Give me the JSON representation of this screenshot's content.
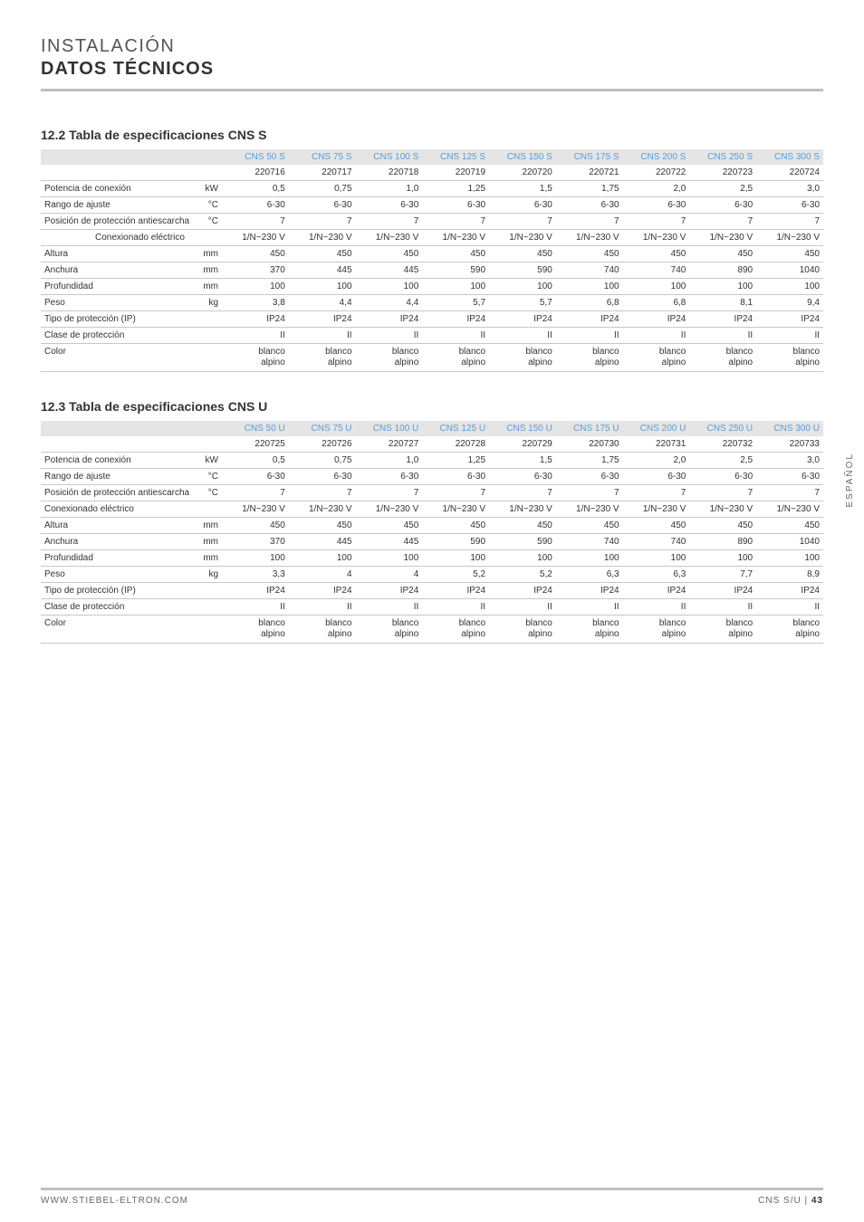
{
  "header": {
    "line1": "INSTALACIÓN",
    "line2": "DATOS TÉCNICOS"
  },
  "side_tab": "ESPAÑOL",
  "footer": {
    "left": "WWW.STIEBEL-ELTRON.COM",
    "right_prefix": "CNS S/U | ",
    "right_page": "43"
  },
  "section_s": {
    "title": "12.2   Tabla de especificaciones CNS S",
    "models": [
      "CNS 50 S",
      "CNS 75 S",
      "CNS 100 S",
      "CNS 125 S",
      "CNS 150 S",
      "CNS 175 S",
      "CNS 200 S",
      "CNS 250 S",
      "CNS 300 S"
    ],
    "codes": [
      "220716",
      "220717",
      "220718",
      "220719",
      "220720",
      "220721",
      "220722",
      "220723",
      "220724"
    ],
    "rows": [
      {
        "label": "Potencia de conexión",
        "unit": "kW",
        "vals": [
          "0,5",
          "0,75",
          "1,0",
          "1,25",
          "1,5",
          "1,75",
          "2,0",
          "2,5",
          "3,0"
        ]
      },
      {
        "label": "Rango de ajuste",
        "unit": "°C",
        "vals": [
          "6-30",
          "6-30",
          "6-30",
          "6-30",
          "6-30",
          "6-30",
          "6-30",
          "6-30",
          "6-30"
        ]
      },
      {
        "label": "Posición de protección antiescarcha",
        "unit": "°C",
        "vals": [
          "7",
          "7",
          "7",
          "7",
          "7",
          "7",
          "7",
          "7",
          "7"
        ]
      },
      {
        "label": "Conexionado eléctrico",
        "unit": "",
        "indent": true,
        "vals": [
          "1/N~230 V",
          "1/N~230 V",
          "1/N~230 V",
          "1/N~230 V",
          "1/N~230 V",
          "1/N~230 V",
          "1/N~230 V",
          "1/N~230 V",
          "1/N~230 V"
        ]
      },
      {
        "label": "Altura",
        "unit": "mm",
        "vals": [
          "450",
          "450",
          "450",
          "450",
          "450",
          "450",
          "450",
          "450",
          "450"
        ]
      },
      {
        "label": "Anchura",
        "unit": "mm",
        "vals": [
          "370",
          "445",
          "445",
          "590",
          "590",
          "740",
          "740",
          "890",
          "1040"
        ]
      },
      {
        "label": "Profundidad",
        "unit": "mm",
        "vals": [
          "100",
          "100",
          "100",
          "100",
          "100",
          "100",
          "100",
          "100",
          "100"
        ]
      },
      {
        "label": "Peso",
        "unit": "kg",
        "vals": [
          "3,8",
          "4,4",
          "4,4",
          "5,7",
          "5,7",
          "6,8",
          "6,8",
          "8,1",
          "9,4"
        ]
      },
      {
        "label": "Tipo de protección (IP)",
        "unit": "",
        "vals": [
          "IP24",
          "IP24",
          "IP24",
          "IP24",
          "IP24",
          "IP24",
          "IP24",
          "IP24",
          "IP24"
        ]
      },
      {
        "label": "Clase de protección",
        "unit": "",
        "vals": [
          "II",
          "II",
          "II",
          "II",
          "II",
          "II",
          "II",
          "II",
          "II"
        ]
      },
      {
        "label": "Color",
        "unit": "",
        "vals": [
          "blanco alpino",
          "blanco alpino",
          "blanco alpino",
          "blanco alpino",
          "blanco alpino",
          "blanco alpino",
          "blanco alpino",
          "blanco alpino",
          "blanco alpino"
        ]
      }
    ]
  },
  "section_u": {
    "title": "12.3   Tabla de especificaciones CNS U",
    "models": [
      "CNS 50 U",
      "CNS 75 U",
      "CNS 100 U",
      "CNS 125 U",
      "CNS 150 U",
      "CNS 175 U",
      "CNS 200 U",
      "CNS 250 U",
      "CNS 300 U"
    ],
    "codes": [
      "220725",
      "220726",
      "220727",
      "220728",
      "220729",
      "220730",
      "220731",
      "220732",
      "220733"
    ],
    "rows": [
      {
        "label": "Potencia de conexión",
        "unit": "kW",
        "vals": [
          "0,5",
          "0,75",
          "1,0",
          "1,25",
          "1,5",
          "1,75",
          "2,0",
          "2,5",
          "3,0"
        ]
      },
      {
        "label": "Rango de ajuste",
        "unit": "°C",
        "vals": [
          "6-30",
          "6-30",
          "6-30",
          "6-30",
          "6-30",
          "6-30",
          "6-30",
          "6-30",
          "6-30"
        ]
      },
      {
        "label": "Posición de protección antiescarcha",
        "unit": "°C",
        "vals": [
          "7",
          "7",
          "7",
          "7",
          "7",
          "7",
          "7",
          "7",
          "7"
        ]
      },
      {
        "label": "Conexionado eléctrico",
        "unit": "",
        "vals": [
          "1/N~230 V",
          "1/N~230 V",
          "1/N~230 V",
          "1/N~230 V",
          "1/N~230 V",
          "1/N~230 V",
          "1/N~230 V",
          "1/N~230 V",
          "1/N~230 V"
        ]
      },
      {
        "label": "Altura",
        "unit": "mm",
        "vals": [
          "450",
          "450",
          "450",
          "450",
          "450",
          "450",
          "450",
          "450",
          "450"
        ]
      },
      {
        "label": "Anchura",
        "unit": "mm",
        "vals": [
          "370",
          "445",
          "445",
          "590",
          "590",
          "740",
          "740",
          "890",
          "1040"
        ]
      },
      {
        "label": "Profundidad",
        "unit": "mm",
        "vals": [
          "100",
          "100",
          "100",
          "100",
          "100",
          "100",
          "100",
          "100",
          "100"
        ]
      },
      {
        "label": "Peso",
        "unit": "kg",
        "vals": [
          "3,3",
          "4",
          "4",
          "5,2",
          "5,2",
          "6,3",
          "6,3",
          "7,7",
          "8,9"
        ]
      },
      {
        "label": "Tipo de protección (IP)",
        "unit": "",
        "vals": [
          "IP24",
          "IP24",
          "IP24",
          "IP24",
          "IP24",
          "IP24",
          "IP24",
          "IP24",
          "IP24"
        ]
      },
      {
        "label": "Clase de protección",
        "unit": "",
        "vals": [
          "II",
          "II",
          "II",
          "II",
          "II",
          "II",
          "II",
          "II",
          "II"
        ]
      },
      {
        "label": "Color",
        "unit": "",
        "vals": [
          "blanco alpino",
          "blanco alpino",
          "blanco alpino",
          "blanco alpino",
          "blanco alpino",
          "blanco alpino",
          "blanco alpino",
          "blanco alpino",
          "blanco alpino"
        ]
      }
    ]
  },
  "styling": {
    "model_header_color": "#5b9bd5",
    "header_bg": "#e5e5e5",
    "border_color": "#c8c8c8",
    "hr_color": "#bfbfbf"
  }
}
